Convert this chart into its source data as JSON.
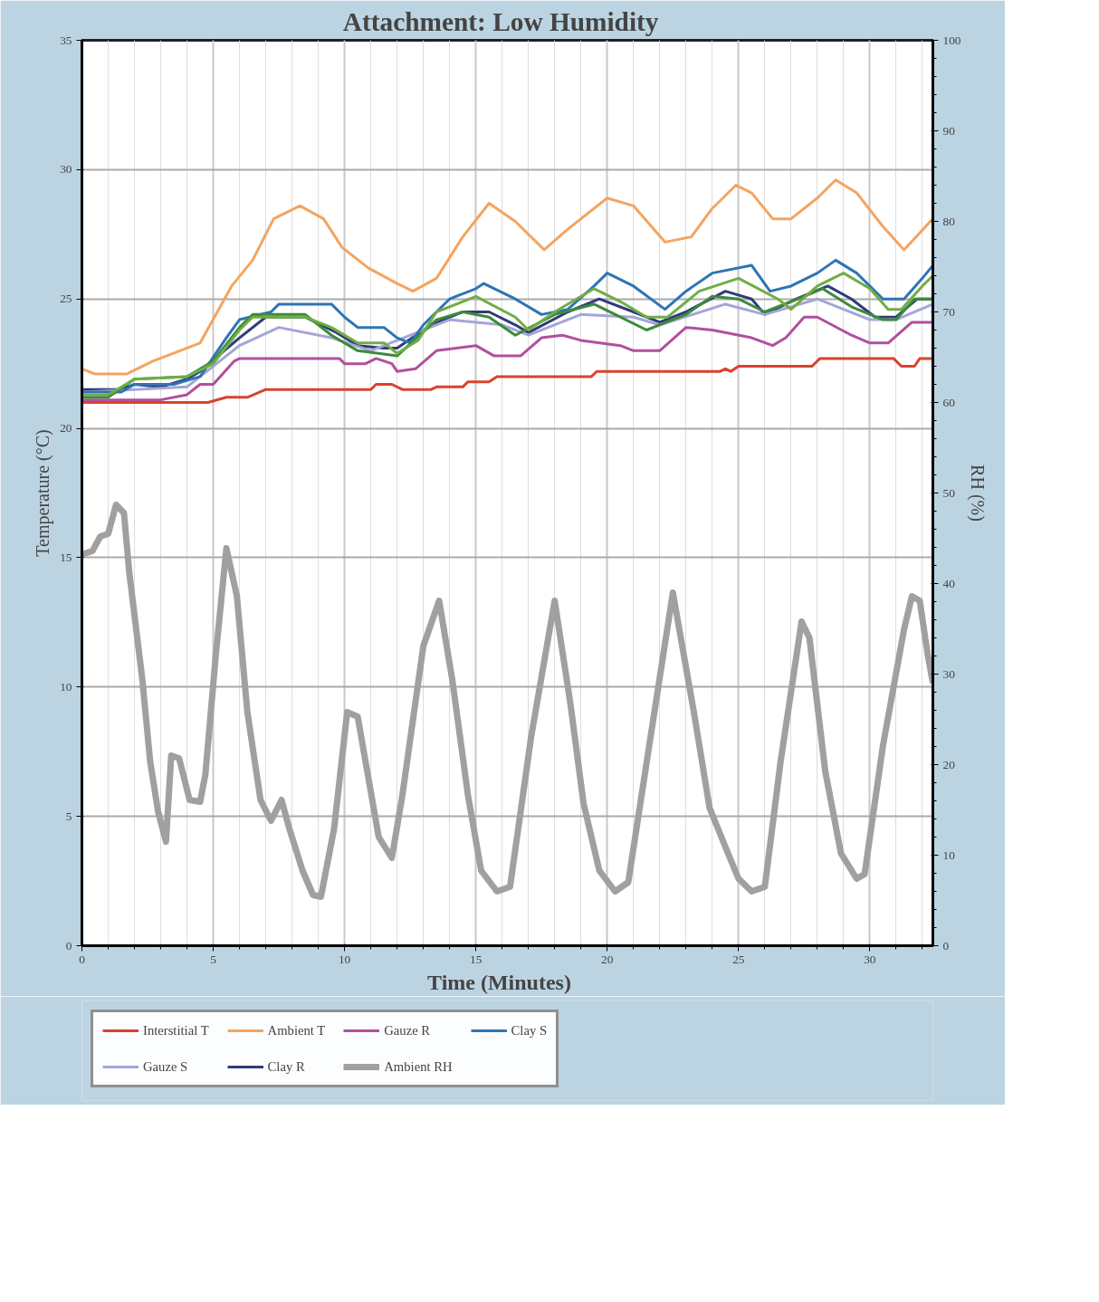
{
  "chart_data": {
    "type": "line",
    "title": "Attachment:  Low  Humidity",
    "xlabel": "Time    (Minutes)",
    "ylabel": "Temperature (°C)",
    "y2label": "RH (%)",
    "xlim": [
      0,
      32.4
    ],
    "xticks": [
      0,
      5,
      10,
      15,
      20,
      25,
      30
    ],
    "ylim": [
      0,
      35
    ],
    "yticks": [
      0,
      5,
      10,
      15,
      20,
      25,
      30,
      35
    ],
    "y2lim": [
      0,
      100
    ],
    "y2ticks": [
      0,
      10,
      20,
      30,
      40,
      50,
      60,
      70,
      80,
      90,
      100
    ],
    "grid": true,
    "legend": "bottom",
    "marker": "none",
    "line_style": "solid",
    "series": [
      {
        "name": "Interstitial T",
        "color": "#d9432e",
        "x": [
          0,
          4.8,
          5.5,
          6.3,
          7,
          11,
          11.2,
          11.8,
          12.2,
          13.3,
          13.5,
          14.5,
          14.7,
          15.5,
          15.8,
          19.4,
          19.6,
          24.3,
          24.5,
          24.7,
          25,
          27.8,
          28.1,
          30.9,
          31.2,
          31.7,
          31.9,
          32.4
        ],
        "values": [
          21.0,
          21.0,
          21.2,
          21.2,
          21.5,
          21.5,
          21.7,
          21.7,
          21.5,
          21.5,
          21.6,
          21.6,
          21.8,
          21.8,
          22.0,
          22.0,
          22.2,
          22.2,
          22.3,
          22.2,
          22.4,
          22.4,
          22.7,
          22.7,
          22.4,
          22.4,
          22.7,
          22.7
        ]
      },
      {
        "color": "#70ad47",
        "x": [
          0,
          1,
          2,
          4,
          5,
          6,
          6.5,
          8.5,
          9.5,
          10.5,
          11.5,
          12,
          12.8,
          13.5,
          15,
          16.5,
          17,
          18,
          19.5,
          20.5,
          21.5,
          22.3,
          23.5,
          25,
          26.5,
          27,
          28,
          29,
          30,
          30.7,
          31.2,
          32,
          32.4
        ],
        "values": [
          21.3,
          21.3,
          21.9,
          22.0,
          22.5,
          23.8,
          24.3,
          24.3,
          23.9,
          23.3,
          23.3,
          22.9,
          23.4,
          24.5,
          25.1,
          24.3,
          23.8,
          24.5,
          25.4,
          24.9,
          24.3,
          24.3,
          25.3,
          25.8,
          25.0,
          24.6,
          25.5,
          26.0,
          25.4,
          24.6,
          24.6,
          25.5,
          25.9
        ]
      },
      {
        "name": "Ambient T",
        "color": "#f4a460",
        "x": [
          0,
          0.5,
          1.7,
          2.7,
          4.5,
          5.7,
          6.5,
          7.3,
          8.3,
          9.2,
          9.9,
          10.9,
          12,
          12.6,
          13.5,
          14.5,
          15.5,
          16.5,
          17.6,
          18.5,
          20.0,
          21.0,
          22.2,
          23.2,
          24.0,
          24.9,
          25.5,
          26.3,
          27.0,
          28.0,
          28.7,
          29.5,
          30.5,
          31.3,
          32.4
        ],
        "values": [
          22.3,
          22.1,
          22.1,
          22.6,
          23.3,
          25.5,
          26.5,
          28.1,
          28.6,
          28.1,
          27.0,
          26.2,
          25.6,
          25.3,
          25.8,
          27.4,
          28.7,
          28.0,
          26.9,
          27.7,
          28.9,
          28.6,
          27.2,
          27.4,
          28.5,
          29.4,
          29.1,
          28.1,
          28.1,
          28.9,
          29.6,
          29.1,
          27.8,
          26.9,
          28.1
        ]
      },
      {
        "color": "#3e8a3a",
        "x": [
          0,
          1,
          2,
          4,
          5,
          6,
          6.5,
          8.5,
          9.5,
          10.5,
          12,
          13.5,
          14.5,
          15.5,
          16.5,
          18,
          19.5,
          20.5,
          21.5,
          23,
          24,
          25,
          26,
          27.5,
          28.2,
          29.3,
          30.5,
          31,
          31.7,
          32.4
        ],
        "values": [
          21.2,
          21.2,
          21.9,
          22.0,
          22.6,
          23.9,
          24.4,
          24.4,
          23.6,
          23.0,
          22.8,
          24.2,
          24.5,
          24.3,
          23.6,
          24.4,
          24.8,
          24.3,
          23.8,
          24.4,
          25.1,
          25.0,
          24.5,
          25.1,
          25.4,
          24.7,
          24.2,
          24.2,
          25.0,
          25.0
        ]
      },
      {
        "name": "Gauze R",
        "color": "#b0509e",
        "x": [
          0,
          3,
          4,
          4.5,
          5,
          5.8,
          6,
          9.8,
          10,
          10.8,
          11.2,
          11.8,
          12,
          12.7,
          13.5,
          15,
          15.7,
          16.7,
          17.5,
          18.3,
          19,
          20.5,
          21,
          22,
          23,
          24,
          25.5,
          26.3,
          26.8,
          27.5,
          28,
          29.3,
          30,
          30.7,
          31.6,
          32.4
        ],
        "values": [
          21.1,
          21.1,
          21.3,
          21.7,
          21.7,
          22.6,
          22.7,
          22.7,
          22.5,
          22.5,
          22.7,
          22.5,
          22.2,
          22.3,
          23.0,
          23.2,
          22.8,
          22.8,
          23.5,
          23.6,
          23.4,
          23.2,
          23.0,
          23.0,
          23.9,
          23.8,
          23.5,
          23.2,
          23.5,
          24.3,
          24.3,
          23.6,
          23.3,
          23.3,
          24.1,
          24.1
        ]
      },
      {
        "name": "Clay S",
        "color": "#2e74b5",
        "x": [
          0,
          1.5,
          2,
          3.5,
          4.5,
          5.5,
          6,
          7.2,
          7.5,
          9.5,
          10,
          10.5,
          11.5,
          12,
          12.5,
          13,
          14,
          15,
          15.3,
          16.5,
          17.5,
          18.5,
          19.5,
          20,
          21,
          22.2,
          23,
          24,
          25.5,
          26.2,
          27,
          28,
          28.7,
          29.5,
          30.5,
          31.3,
          32,
          32.4
        ],
        "values": [
          21.4,
          21.4,
          21.7,
          21.7,
          22.0,
          23.5,
          24.2,
          24.5,
          24.8,
          24.8,
          24.3,
          23.9,
          23.9,
          23.5,
          23.3,
          24.0,
          25.0,
          25.4,
          25.6,
          25.0,
          24.4,
          24.6,
          25.5,
          26.0,
          25.5,
          24.6,
          25.3,
          26.0,
          26.3,
          25.3,
          25.5,
          26.0,
          26.5,
          26.0,
          25.0,
          25.0,
          25.8,
          26.3
        ]
      },
      {
        "name": "Gauze S",
        "color": "#a4a6d8",
        "x": [
          0,
          2,
          4,
          6,
          7.5,
          9.5,
          11,
          14,
          16,
          17,
          19,
          21,
          22,
          24.5,
          26,
          28,
          30,
          31,
          32.4
        ],
        "values": [
          21.4,
          21.5,
          21.6,
          23.2,
          23.9,
          23.5,
          23.0,
          24.2,
          24.0,
          23.6,
          24.4,
          24.3,
          24.0,
          24.8,
          24.4,
          25.0,
          24.2,
          24.2,
          24.8
        ]
      },
      {
        "name": "Clay R",
        "color": "#2f3b7a",
        "x": [
          0,
          1.5,
          2,
          3,
          4,
          4.5,
          6,
          7,
          8.5,
          9.7,
          10.5,
          11.5,
          12,
          13.3,
          14.5,
          15.5,
          16.5,
          17,
          18.5,
          19.7,
          21,
          22,
          23,
          24.5,
          25.5,
          26,
          27.2,
          28.4,
          29.3,
          30.2,
          31,
          31.8,
          32.4
        ],
        "values": [
          21.5,
          21.5,
          21.7,
          21.6,
          21.9,
          22.2,
          23.5,
          24.3,
          24.3,
          23.7,
          23.2,
          23.1,
          23.1,
          24.0,
          24.5,
          24.5,
          24.0,
          23.7,
          24.5,
          25.0,
          24.5,
          24.1,
          24.5,
          25.3,
          25.0,
          24.4,
          25.0,
          25.5,
          25.0,
          24.3,
          24.3,
          25.0,
          25.0
        ]
      },
      {
        "name": "Ambient RH",
        "color": "#a0a0a0",
        "axis": "y2",
        "x": [
          0,
          0.4,
          0.7,
          1.0,
          1.3,
          1.6,
          1.8,
          2.3,
          2.6,
          2.9,
          3.2,
          3.4,
          3.7,
          4.1,
          4.5,
          4.7,
          5.1,
          5.5,
          5.9,
          6.3,
          6.8,
          7.2,
          7.6,
          7.9,
          8.4,
          8.8,
          9.1,
          9.6,
          10.1,
          10.5,
          11.3,
          11.8,
          12.2,
          13.0,
          13.6,
          14.1,
          14.7,
          15.2,
          15.8,
          16.3,
          17.1,
          18.0,
          18.6,
          19.1,
          19.7,
          20.3,
          20.8,
          21.6,
          22.5,
          23.3,
          23.9,
          24.6,
          25.0,
          25.5,
          26.0,
          26.6,
          27.4,
          27.7,
          28.3,
          28.9,
          29.5,
          29.8,
          30.5,
          31.3,
          31.6,
          31.9,
          32.2,
          32.4
        ],
        "values": [
          43.2,
          43.6,
          45.2,
          45.5,
          48.7,
          47.8,
          41.3,
          29.4,
          20.3,
          14.8,
          11.5,
          21.0,
          20.7,
          16.1,
          15.9,
          18.9,
          32.2,
          43.9,
          38.6,
          25.8,
          16.1,
          13.8,
          16.1,
          12.9,
          8.3,
          5.6,
          5.4,
          12.9,
          25.8,
          25.3,
          12.0,
          9.7,
          16.6,
          33.1,
          38.1,
          29.4,
          16.6,
          8.3,
          6.0,
          6.5,
          23.0,
          38.1,
          26.7,
          15.7,
          8.3,
          6.0,
          7.0,
          22.1,
          39.0,
          25.8,
          15.2,
          10.2,
          7.4,
          6.0,
          6.5,
          20.3,
          35.8,
          34.0,
          19.3,
          10.2,
          7.4,
          7.9,
          22.1,
          34.9,
          38.6,
          38.1,
          32.2,
          29.0
        ]
      }
    ]
  }
}
